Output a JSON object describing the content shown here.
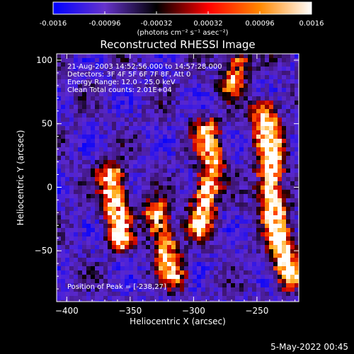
{
  "chart_data": {
    "type": "heatmap",
    "title": "Reconstructed RHESSI Image",
    "xlabel": "Heliocentric X (arcsec)",
    "ylabel": "Heliocentric Y (arcsec)",
    "xlim": [
      -408,
      -217
    ],
    "ylim": [
      -90,
      105
    ],
    "x_ticks": [
      -400,
      -350,
      -300,
      -250
    ],
    "y_ticks": [
      -50,
      0,
      50,
      100
    ],
    "colorbar": {
      "range": [
        -0.0016,
        0.0016
      ],
      "ticks": [
        "-0.0016",
        "-0.00096",
        "-0.00032",
        "0.00032",
        "0.00096",
        "0.0016"
      ],
      "units_line": "(photons cm⁻² s⁻¹ asec⁻²)",
      "colormap": [
        "#0000ff",
        "#6633cc",
        "#000000",
        "#ff0000",
        "#ff8800",
        "#ffffff"
      ]
    },
    "annotations": [
      "21-Aug-2003 14:52:56.000 to 14:57:28.000",
      "Detectors: 3F 4F 5F 6F 7F 8F, Att 0",
      "Energy Range: 12.0 - 25.0 keV",
      "Clean     Total counts: 2.01E+04"
    ],
    "peak_text": "Position of Peak = [-238,27]",
    "grid": false,
    "bright_ridges": [
      {
        "points": [
          [
            -365,
            10
          ],
          [
            -360,
            -25
          ],
          [
            -358,
            -40
          ]
        ],
        "intensity": 0.9
      },
      {
        "points": [
          [
            -330,
            -20
          ],
          [
            -320,
            -55
          ],
          [
            -315,
            -70
          ]
        ],
        "intensity": 0.8
      },
      {
        "points": [
          [
            -290,
            45
          ],
          [
            -285,
            20
          ],
          [
            -290,
            -5
          ],
          [
            -295,
            -30
          ]
        ],
        "intensity": 0.85
      },
      {
        "points": [
          [
            -245,
            60
          ],
          [
            -238,
            27
          ],
          [
            -240,
            0
          ],
          [
            -235,
            -30
          ],
          [
            -225,
            -70
          ]
        ],
        "intensity": 1.0
      },
      {
        "points": [
          [
            -270,
            80
          ],
          [
            -265,
            100
          ]
        ],
        "intensity": 0.6
      }
    ]
  },
  "footer": {
    "date": "5-May-2022 00:45"
  }
}
